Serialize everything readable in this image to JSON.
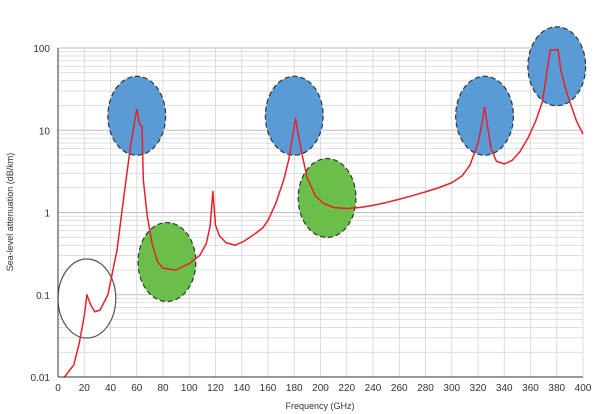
{
  "chart_data": {
    "type": "line",
    "xlabel": "Frequency (GHz)",
    "ylabel": "Sea-level attenuation (dB/km)",
    "xlim": [
      0,
      400
    ],
    "ylim": [
      0.01,
      100
    ],
    "y_scale": "log",
    "grid": true,
    "x_ticks": [
      0,
      20,
      40,
      60,
      80,
      100,
      120,
      140,
      160,
      180,
      200,
      220,
      240,
      260,
      280,
      300,
      320,
      340,
      360,
      380,
      400
    ],
    "y_ticks": [
      0.01,
      0.1,
      1,
      10,
      100
    ],
    "y_tick_labels": [
      "0.01",
      "0.1",
      "1",
      "10",
      "100"
    ],
    "series": [
      {
        "color": "#e8202a",
        "points": [
          [
            5,
            0.01
          ],
          [
            12,
            0.014
          ],
          [
            16,
            0.025
          ],
          [
            20,
            0.055
          ],
          [
            22,
            0.1
          ],
          [
            25,
            0.075
          ],
          [
            28,
            0.062
          ],
          [
            32,
            0.065
          ],
          [
            38,
            0.1
          ],
          [
            45,
            0.35
          ],
          [
            50,
            1.5
          ],
          [
            55,
            6
          ],
          [
            58,
            12
          ],
          [
            60,
            18
          ],
          [
            62,
            12
          ],
          [
            64,
            11
          ],
          [
            65,
            2.5
          ],
          [
            68,
            0.9
          ],
          [
            72,
            0.4
          ],
          [
            76,
            0.25
          ],
          [
            80,
            0.21
          ],
          [
            90,
            0.2
          ],
          [
            100,
            0.24
          ],
          [
            108,
            0.3
          ],
          [
            113,
            0.42
          ],
          [
            116,
            0.7
          ],
          [
            118,
            1.8
          ],
          [
            120,
            0.7
          ],
          [
            123,
            0.52
          ],
          [
            128,
            0.43
          ],
          [
            135,
            0.4
          ],
          [
            142,
            0.45
          ],
          [
            150,
            0.55
          ],
          [
            156,
            0.65
          ],
          [
            160,
            0.8
          ],
          [
            166,
            1.3
          ],
          [
            172,
            2.5
          ],
          [
            176,
            4.5
          ],
          [
            179,
            9
          ],
          [
            181,
            14
          ],
          [
            183,
            9
          ],
          [
            186,
            5
          ],
          [
            190,
            2.6
          ],
          [
            196,
            1.6
          ],
          [
            202,
            1.3
          ],
          [
            210,
            1.15
          ],
          [
            220,
            1.12
          ],
          [
            230,
            1.15
          ],
          [
            240,
            1.22
          ],
          [
            250,
            1.32
          ],
          [
            260,
            1.45
          ],
          [
            270,
            1.6
          ],
          [
            280,
            1.78
          ],
          [
            290,
            2.0
          ],
          [
            300,
            2.3
          ],
          [
            308,
            2.8
          ],
          [
            314,
            3.8
          ],
          [
            320,
            7
          ],
          [
            323,
            12
          ],
          [
            325,
            19
          ],
          [
            327,
            12
          ],
          [
            330,
            6
          ],
          [
            334,
            4.2
          ],
          [
            340,
            3.9
          ],
          [
            346,
            4.3
          ],
          [
            352,
            5.5
          ],
          [
            358,
            8
          ],
          [
            364,
            13
          ],
          [
            369,
            22
          ],
          [
            372,
            45
          ],
          [
            375,
            95
          ],
          [
            381,
            95
          ],
          [
            383,
            55
          ],
          [
            386,
            35
          ],
          [
            390,
            22
          ],
          [
            395,
            13
          ],
          [
            400,
            9
          ]
        ]
      }
    ],
    "annotations": [
      {
        "shape": "ellipse",
        "fill": "#ffffff",
        "stroke": "#555555",
        "style": "solid",
        "cx": 22,
        "cy": 0.09,
        "rx": 22,
        "ry_decades": 0.48
      },
      {
        "shape": "ellipse",
        "fill": "#5b9bd5",
        "stroke": "#333333",
        "style": "dashed",
        "cx": 60,
        "cy": 15,
        "rx": 22,
        "ry_decades": 0.48
      },
      {
        "shape": "ellipse",
        "fill": "#6abf4b",
        "stroke": "#333333",
        "style": "dashed",
        "cx": 83,
        "cy": 0.25,
        "rx": 22,
        "ry_decades": 0.48
      },
      {
        "shape": "ellipse",
        "fill": "#5b9bd5",
        "stroke": "#333333",
        "style": "dashed",
        "cx": 180,
        "cy": 15,
        "rx": 22,
        "ry_decades": 0.48
      },
      {
        "shape": "ellipse",
        "fill": "#6abf4b",
        "stroke": "#333333",
        "style": "dashed",
        "cx": 205,
        "cy": 1.5,
        "rx": 22,
        "ry_decades": 0.48
      },
      {
        "shape": "ellipse",
        "fill": "#5b9bd5",
        "stroke": "#333333",
        "style": "dashed",
        "cx": 325,
        "cy": 15,
        "rx": 22,
        "ry_decades": 0.48
      },
      {
        "shape": "ellipse",
        "fill": "#5b9bd5",
        "stroke": "#333333",
        "style": "dashed",
        "cx": 380,
        "cy": 60,
        "rx": 22,
        "ry_decades": 0.48
      }
    ]
  }
}
